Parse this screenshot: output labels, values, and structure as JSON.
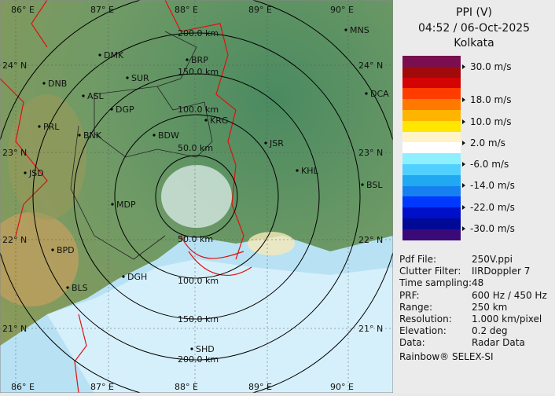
{
  "title": {
    "product": "PPI (V)",
    "datetime": "04:52 / 06-Oct-2025",
    "site": "Kolkata"
  },
  "legend": {
    "colors": [
      "#7a0f4f",
      "#a00a0a",
      "#d40404",
      "#ff3c00",
      "#ff7800",
      "#ffb400",
      "#ffe600",
      "#fff4c8",
      "#ffffff",
      "#8ef0ff",
      "#50d0ff",
      "#20a8f0",
      "#1680f0",
      "#0038ff",
      "#0010c8",
      "#000a96",
      "#3a0a78"
    ],
    "labels": [
      "30.0 m/s",
      "18.0 m/s",
      "10.0 m/s",
      "2.0 m/s",
      "-6.0 m/s",
      "-14.0 m/s",
      "-22.0 m/s",
      "-30.0 m/s"
    ]
  },
  "info": [
    {
      "key": "Pdf File:",
      "value": "250V.ppi"
    },
    {
      "key": "Clutter Filter:",
      "value": "IIRDoppler 7"
    },
    {
      "key": "Time sampling:",
      "value": "48"
    },
    {
      "key": "PRF:",
      "value": "600 Hz / 450 Hz"
    },
    {
      "key": "Range:",
      "value": "250 km"
    },
    {
      "key": "Resolution:",
      "value": "1.000 km/pixel"
    },
    {
      "key": "Elevation:",
      "value": "0.2 deg"
    },
    {
      "key": "Data:",
      "value": "Radar Data"
    }
  ],
  "credit": "Rainbow® SELEX-SI",
  "map": {
    "lon_labels": [
      "86° E",
      "87° E",
      "88° E",
      "89° E",
      "90° E"
    ],
    "lat_labels": [
      "24° N",
      "23° N",
      "22° N",
      "21° N"
    ],
    "rings": [
      "50.0 km",
      "100.0 km",
      "150.0 km",
      "200.0 km"
    ],
    "cities": [
      "MNS",
      "DMK",
      "BRP",
      "DNB",
      "SUR",
      "ASL",
      "DGP",
      "DCA",
      "KRG",
      "PRL",
      "BNK",
      "BDW",
      "JSR",
      "KHL",
      "JSD",
      "BSL",
      "MDP",
      "BPD",
      "DGH",
      "BLS",
      "SHD"
    ]
  }
}
